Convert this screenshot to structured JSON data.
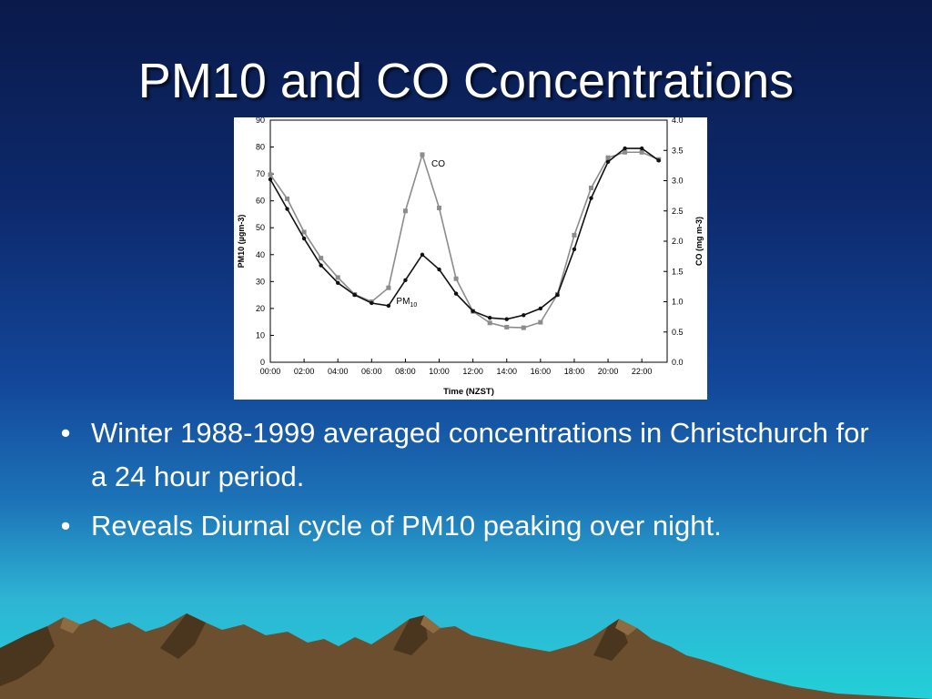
{
  "slide": {
    "title": "PM10 and CO Concentrations",
    "bullets": [
      "Winter 1988-1999 averaged concentrations in Christchurch for a 24 hour period.",
      "Reveals Diurnal cycle of PM10 peaking over night."
    ]
  },
  "chart_data": {
    "type": "line",
    "xlabel": "Time (NZST)",
    "ylabel_left": "PM10 (µgm-3)",
    "ylabel_right": "CO (mg m-3)",
    "x_ticks": [
      "00:00",
      "02:00",
      "04:00",
      "06:00",
      "08:00",
      "10:00",
      "12:00",
      "14:00",
      "16:00",
      "18:00",
      "20:00",
      "22:00"
    ],
    "x": [
      0,
      1,
      2,
      3,
      4,
      5,
      6,
      7,
      8,
      9,
      10,
      11,
      12,
      13,
      14,
      15,
      16,
      17,
      18,
      19,
      20,
      21,
      22,
      23
    ],
    "ylim_left": [
      0,
      90
    ],
    "ylim_right": [
      0,
      4.0
    ],
    "y_ticks_left": [
      "0",
      "10",
      "20",
      "30",
      "40",
      "50",
      "60",
      "70",
      "80",
      "90"
    ],
    "y_ticks_right": [
      "0.0",
      "0.5",
      "1.0",
      "1.5",
      "2.0",
      "2.5",
      "3.0",
      "3.5",
      "4.0"
    ],
    "series": [
      {
        "name": "PM10",
        "axis": "left",
        "color": "#111111",
        "values": [
          68,
          57,
          46,
          36,
          29.5,
          25,
          22,
          21,
          30.5,
          40,
          34.5,
          25.5,
          19,
          16.5,
          16,
          17.5,
          20,
          25,
          42,
          61,
          74.5,
          79.5,
          79.5,
          75
        ]
      },
      {
        "name": "CO",
        "axis": "right",
        "color": "#8c8c8c",
        "values": [
          3.1,
          2.7,
          2.15,
          1.72,
          1.4,
          1.12,
          1.0,
          1.23,
          2.5,
          3.43,
          2.55,
          1.38,
          0.84,
          0.65,
          0.58,
          0.57,
          0.66,
          1.12,
          2.1,
          2.88,
          3.38,
          3.47,
          3.47,
          3.35
        ]
      }
    ],
    "annotations": {
      "co": "CO",
      "pm10_base": "PM",
      "pm10_sub": "10"
    },
    "colors": {
      "pm10": "#111111",
      "co": "#8c8c8c"
    }
  }
}
